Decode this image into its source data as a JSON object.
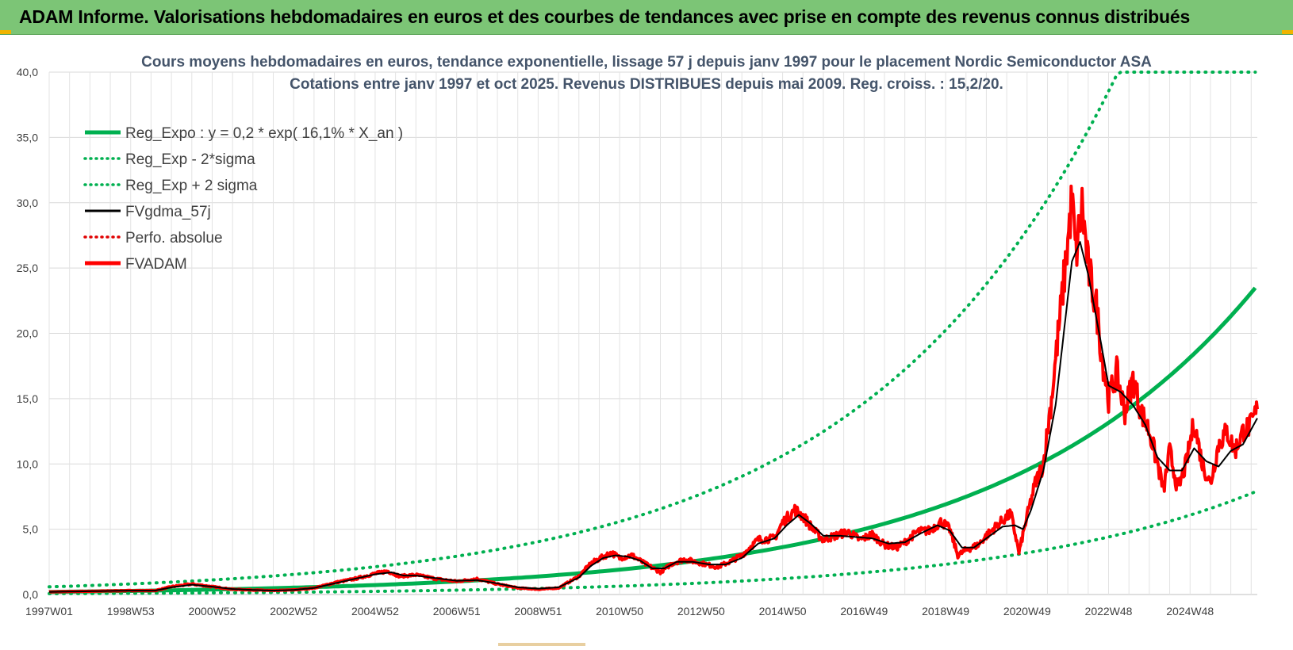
{
  "banner": {
    "title": "ADAM Informe. Valorisations hebdomadaires en euros et des courbes de tendances avec prise en compte des revenus connus distribués"
  },
  "chart_data": {
    "type": "line",
    "title_line1": "Cours moyens hebdomadaires en euros, tendance exponentielle, lissage 57 j depuis janv 1997 pour le placement Nordic Semiconductor ASA",
    "title_line2": "Cotations entre janv 1997 et oct 2025. Revenus DISTRIBUES depuis mai 2009. Reg. croiss. : 15,2/20.",
    "x_range": [
      1997.0,
      2025.8
    ],
    "ylim": [
      0,
      40
    ],
    "y_ticks": [
      {
        "v": 0,
        "label": "0,0"
      },
      {
        "v": 5,
        "label": "5,0"
      },
      {
        "v": 10,
        "label": "10,0"
      },
      {
        "v": 15,
        "label": "15,0"
      },
      {
        "v": 20,
        "label": "20,0"
      },
      {
        "v": 25,
        "label": "25,0"
      },
      {
        "v": 30,
        "label": "30,0"
      },
      {
        "v": 35,
        "label": "35,0"
      },
      {
        "v": 40,
        "label": "40,0"
      }
    ],
    "x_ticks": [
      {
        "t": 1997.0,
        "label": "1997W01"
      },
      {
        "t": 1999.0,
        "label": "1998W53"
      },
      {
        "t": 2001.0,
        "label": "2000W52"
      },
      {
        "t": 2003.0,
        "label": "2002W52"
      },
      {
        "t": 2005.0,
        "label": "2004W52"
      },
      {
        "t": 2007.0,
        "label": "2006W51"
      },
      {
        "t": 2009.0,
        "label": "2008W51"
      },
      {
        "t": 2011.0,
        "label": "2010W50"
      },
      {
        "t": 2013.0,
        "label": "2012W50"
      },
      {
        "t": 2015.0,
        "label": "2014W50"
      },
      {
        "t": 2017.0,
        "label": "2016W49"
      },
      {
        "t": 2019.0,
        "label": "2018W49"
      },
      {
        "t": 2021.0,
        "label": "2020W49"
      },
      {
        "t": 2023.0,
        "label": "2022W48"
      },
      {
        "t": 2025.0,
        "label": "2024W48"
      }
    ],
    "regression": {
      "a": 0.2,
      "rate": 0.161,
      "sigma_low_factor": 0.335,
      "sigma_high_factor": 2.93,
      "cap": 40
    },
    "legend": [
      {
        "label": "Reg_Expo : y = 0,2 * exp( 16,1% *  X_an )",
        "color": "#00b050",
        "style": "solid-thick"
      },
      {
        "label": "Reg_Exp - 2*sigma",
        "color": "#00b050",
        "style": "dotted"
      },
      {
        "label": "Reg_Exp + 2 sigma",
        "color": "#00b050",
        "style": "dotted"
      },
      {
        "label": "FVgdma_57j",
        "color": "#000000",
        "style": "solid"
      },
      {
        "label": "Perfo. absolue",
        "color": "#e00000",
        "style": "dotted"
      },
      {
        "label": "FVADAM",
        "color": "#ff0000",
        "style": "solid-thick"
      }
    ],
    "fvadam": [
      [
        1997.0,
        0.2
      ],
      [
        1998.0,
        0.25
      ],
      [
        1999.0,
        0.3
      ],
      [
        1999.6,
        0.3
      ],
      [
        2000.0,
        0.6
      ],
      [
        2000.5,
        0.8
      ],
      [
        2001.0,
        0.6
      ],
      [
        2001.5,
        0.4
      ],
      [
        2002.0,
        0.35
      ],
      [
        2002.5,
        0.3
      ],
      [
        2003.0,
        0.35
      ],
      [
        2003.5,
        0.5
      ],
      [
        2004.0,
        0.9
      ],
      [
        2004.5,
        1.2
      ],
      [
        2005.0,
        1.6
      ],
      [
        2005.3,
        1.8
      ],
      [
        2005.6,
        1.4
      ],
      [
        2006.0,
        1.5
      ],
      [
        2006.5,
        1.2
      ],
      [
        2007.0,
        1.0
      ],
      [
        2007.5,
        1.2
      ],
      [
        2008.0,
        0.8
      ],
      [
        2008.5,
        0.5
      ],
      [
        2009.0,
        0.4
      ],
      [
        2009.5,
        0.5
      ],
      [
        2010.0,
        1.4
      ],
      [
        2010.3,
        2.4
      ],
      [
        2010.6,
        2.9
      ],
      [
        2010.8,
        3.2
      ],
      [
        2011.0,
        2.8
      ],
      [
        2011.3,
        3.0
      ],
      [
        2011.6,
        2.4
      ],
      [
        2012.0,
        1.7
      ],
      [
        2012.3,
        2.4
      ],
      [
        2012.6,
        2.7
      ],
      [
        2013.0,
        2.4
      ],
      [
        2013.4,
        2.1
      ],
      [
        2013.7,
        2.5
      ],
      [
        2014.0,
        3.0
      ],
      [
        2014.4,
        4.2
      ],
      [
        2014.8,
        4.3
      ],
      [
        2015.0,
        5.5
      ],
      [
        2015.3,
        6.5
      ],
      [
        2015.5,
        6.0
      ],
      [
        2015.8,
        4.8
      ],
      [
        2016.0,
        4.2
      ],
      [
        2016.3,
        4.5
      ],
      [
        2016.6,
        4.8
      ],
      [
        2016.9,
        4.2
      ],
      [
        2017.2,
        4.6
      ],
      [
        2017.5,
        3.8
      ],
      [
        2017.8,
        3.6
      ],
      [
        2018.0,
        4.0
      ],
      [
        2018.3,
        4.8
      ],
      [
        2018.6,
        4.9
      ],
      [
        2018.9,
        5.6
      ],
      [
        2019.1,
        5.0
      ],
      [
        2019.3,
        3.0
      ],
      [
        2019.5,
        3.4
      ],
      [
        2019.8,
        3.8
      ],
      [
        2020.0,
        4.5
      ],
      [
        2020.3,
        5.4
      ],
      [
        2020.6,
        6.2
      ],
      [
        2020.75,
        4.0
      ],
      [
        2020.8,
        3.2
      ],
      [
        2021.0,
        6.0
      ],
      [
        2021.2,
        8.5
      ],
      [
        2021.4,
        10.0
      ],
      [
        2021.6,
        15.0
      ],
      [
        2021.8,
        21.0
      ],
      [
        2022.0,
        27.0
      ],
      [
        2022.1,
        30.3
      ],
      [
        2022.2,
        26.0
      ],
      [
        2022.35,
        29.8
      ],
      [
        2022.5,
        25.0
      ],
      [
        2022.7,
        22.0
      ],
      [
        2022.85,
        18.0
      ],
      [
        2023.0,
        15.0
      ],
      [
        2023.2,
        17.0
      ],
      [
        2023.4,
        14.0
      ],
      [
        2023.6,
        16.5
      ],
      [
        2023.8,
        14.0
      ],
      [
        2024.0,
        12.5
      ],
      [
        2024.2,
        10.0
      ],
      [
        2024.35,
        8.0
      ],
      [
        2024.5,
        11.0
      ],
      [
        2024.7,
        8.0
      ],
      [
        2024.9,
        10.0
      ],
      [
        2025.1,
        13.2
      ],
      [
        2025.3,
        10.0
      ],
      [
        2025.5,
        8.5
      ],
      [
        2025.7,
        11.5
      ],
      [
        2025.9,
        12.5
      ],
      [
        2026.1,
        11.0
      ],
      [
        2026.3,
        12.5
      ],
      [
        2026.5,
        13.0
      ],
      [
        2026.65,
        14.2
      ]
    ],
    "fvgdma_57j": [
      [
        1997.0,
        0.2
      ],
      [
        1998.0,
        0.25
      ],
      [
        1999.0,
        0.3
      ],
      [
        1999.6,
        0.3
      ],
      [
        2000.0,
        0.55
      ],
      [
        2000.5,
        0.75
      ],
      [
        2001.0,
        0.6
      ],
      [
        2001.5,
        0.42
      ],
      [
        2002.0,
        0.35
      ],
      [
        2002.5,
        0.3
      ],
      [
        2003.0,
        0.35
      ],
      [
        2003.5,
        0.5
      ],
      [
        2004.0,
        0.85
      ],
      [
        2004.5,
        1.2
      ],
      [
        2005.0,
        1.55
      ],
      [
        2005.4,
        1.7
      ],
      [
        2005.7,
        1.45
      ],
      [
        2006.0,
        1.45
      ],
      [
        2006.5,
        1.25
      ],
      [
        2007.0,
        1.05
      ],
      [
        2007.5,
        1.1
      ],
      [
        2008.0,
        0.85
      ],
      [
        2008.5,
        0.55
      ],
      [
        2009.0,
        0.45
      ],
      [
        2009.5,
        0.55
      ],
      [
        2010.0,
        1.3
      ],
      [
        2010.3,
        2.2
      ],
      [
        2010.6,
        2.8
      ],
      [
        2010.9,
        3.0
      ],
      [
        2011.2,
        2.9
      ],
      [
        2011.5,
        2.6
      ],
      [
        2011.8,
        2.0
      ],
      [
        2012.1,
        2.0
      ],
      [
        2012.4,
        2.5
      ],
      [
        2012.8,
        2.5
      ],
      [
        2013.2,
        2.3
      ],
      [
        2013.6,
        2.3
      ],
      [
        2014.0,
        2.8
      ],
      [
        2014.4,
        3.9
      ],
      [
        2014.8,
        4.3
      ],
      [
        2015.1,
        5.3
      ],
      [
        2015.4,
        6.1
      ],
      [
        2015.7,
        5.4
      ],
      [
        2016.0,
        4.5
      ],
      [
        2016.4,
        4.5
      ],
      [
        2016.8,
        4.4
      ],
      [
        2017.2,
        4.3
      ],
      [
        2017.6,
        3.9
      ],
      [
        2018.0,
        4.0
      ],
      [
        2018.4,
        4.7
      ],
      [
        2018.8,
        5.3
      ],
      [
        2019.1,
        4.9
      ],
      [
        2019.4,
        3.6
      ],
      [
        2019.7,
        3.6
      ],
      [
        2020.0,
        4.3
      ],
      [
        2020.4,
        5.2
      ],
      [
        2020.7,
        5.3
      ],
      [
        2020.9,
        5.0
      ],
      [
        2021.1,
        6.5
      ],
      [
        2021.4,
        9.5
      ],
      [
        2021.7,
        14.5
      ],
      [
        2021.9,
        20.0
      ],
      [
        2022.1,
        25.5
      ],
      [
        2022.3,
        27.0
      ],
      [
        2022.5,
        24.5
      ],
      [
        2022.8,
        19.5
      ],
      [
        2023.0,
        16.0
      ],
      [
        2023.3,
        15.5
      ],
      [
        2023.6,
        14.5
      ],
      [
        2023.9,
        13.0
      ],
      [
        2024.2,
        10.5
      ],
      [
        2024.5,
        9.5
      ],
      [
        2024.8,
        9.5
      ],
      [
        2025.1,
        11.2
      ],
      [
        2025.4,
        10.2
      ],
      [
        2025.7,
        9.8
      ],
      [
        2026.0,
        11.0
      ],
      [
        2026.3,
        11.5
      ],
      [
        2026.65,
        13.5
      ]
    ]
  }
}
